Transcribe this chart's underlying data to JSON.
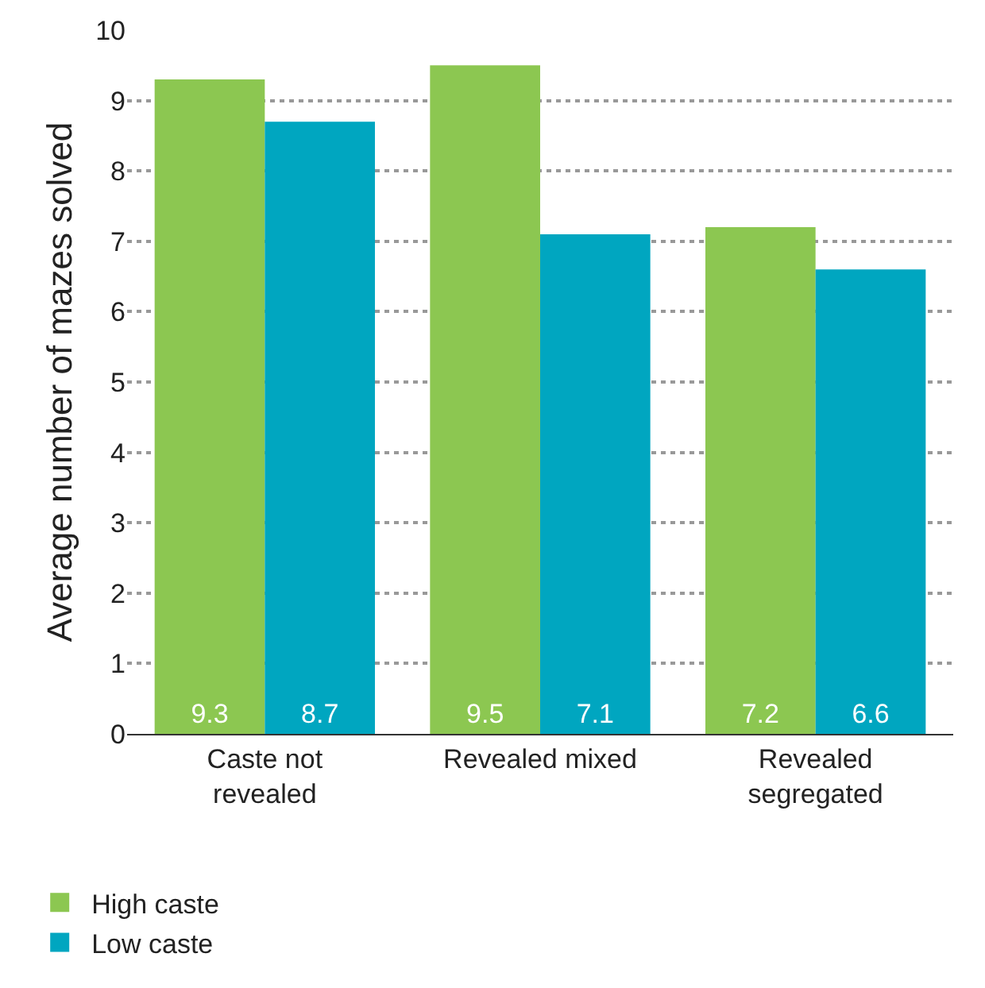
{
  "chart_data": {
    "type": "bar",
    "ylabel": "Average number of mazes solved",
    "categories": [
      "Caste not revealed",
      "Revealed mixed",
      "Revealed segregated"
    ],
    "series": [
      {
        "name": "High caste",
        "color": "#8cc751",
        "values": [
          9.3,
          9.5,
          7.2
        ]
      },
      {
        "name": "Low caste",
        "color": "#00a6c0",
        "values": [
          8.7,
          7.1,
          6.6
        ]
      }
    ],
    "ylim": [
      0,
      10
    ],
    "yticks": [
      0,
      1,
      2,
      3,
      4,
      5,
      6,
      7,
      8,
      9,
      10
    ],
    "grid": "y",
    "legend": "bottom left",
    "data_labels": true
  }
}
